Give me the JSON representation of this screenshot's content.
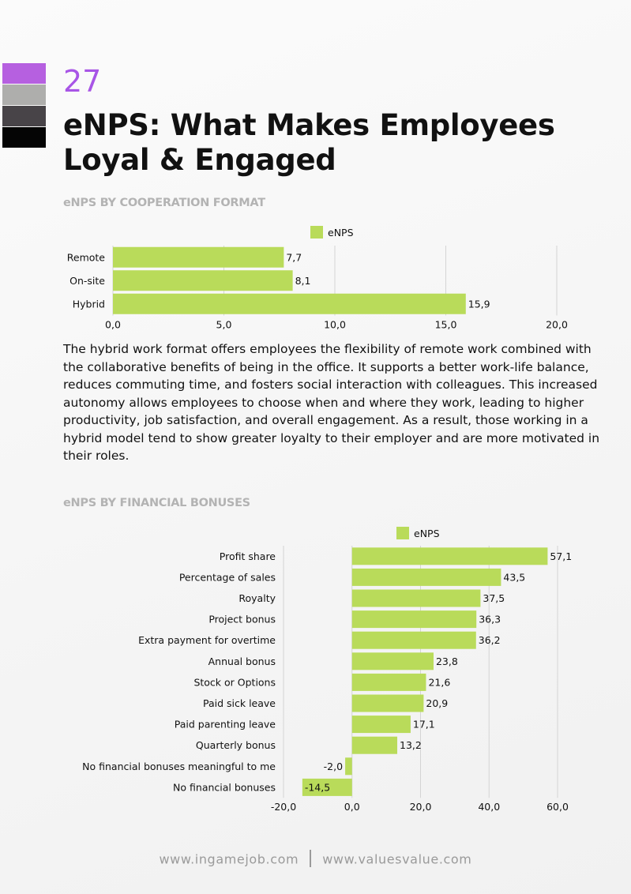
{
  "colors": {
    "accent": "#a855e6",
    "bar": "#b9db5a",
    "swatches": [
      "#b660e0",
      "#aeaeac",
      "#484448",
      "#050505"
    ]
  },
  "page": {
    "number": "27",
    "title": "eNPS: What Makes Employees Loyal & Engaged"
  },
  "sections": {
    "cooperation": {
      "title": "eNPS BY COOPERATION FORMAT"
    },
    "bonuses": {
      "title": "eNPS BY FINANCIAL BONUSES"
    }
  },
  "body_text": "The hybrid work format offers employees the flexibility of remote work combined with the collaborative benefits of being in the office. It supports a better work-life balance, reduces commuting time, and fosters social interaction with colleagues. This increased autonomy allows employees to choose when and where they work, leading to higher productivity, job satisfaction, and overall engagement. As a result, those working in a hybrid model tend to show greater loyalty to their employer and are more motivated in their roles.",
  "footer": {
    "left": "www.ingamejob.com",
    "right": "www.valuesvalue.com"
  },
  "chart_data": [
    {
      "type": "bar",
      "orientation": "horizontal",
      "legend": "eNPS",
      "legend_position": "top-center",
      "categories": [
        "Remote",
        "On-site",
        "Hybrid"
      ],
      "values": [
        7.7,
        8.1,
        15.9
      ],
      "data_labels": [
        "7,7",
        "8,1",
        "15,9"
      ],
      "xlim": [
        0,
        20
      ],
      "ticks": [
        0,
        5,
        10,
        15,
        20
      ],
      "tick_labels": [
        "0,0",
        "5,0",
        "10,0",
        "15,0",
        "20,0"
      ],
      "grid": true
    },
    {
      "type": "bar",
      "orientation": "horizontal",
      "legend": "eNPS",
      "legend_position": "top-center",
      "categories": [
        "Profit share",
        "Percentage of sales",
        "Royalty",
        "Project bonus",
        "Extra payment for overtime",
        "Annual bonus",
        "Stock or Options",
        "Paid sick leave",
        "Paid parenting leave",
        "Quarterly bonus",
        "No financial bonuses meaningful to me",
        "No financial bonuses"
      ],
      "values": [
        57.1,
        43.5,
        37.5,
        36.3,
        36.2,
        23.8,
        21.6,
        20.9,
        17.1,
        13.2,
        -2.0,
        -14.5
      ],
      "data_labels": [
        "57,1",
        "43,5",
        "37,5",
        "36,3",
        "36,2",
        "23,8",
        "21,6",
        "20,9",
        "17,1",
        "13,2",
        "-2,0",
        "-14,5"
      ],
      "xlim": [
        -20,
        60
      ],
      "ticks": [
        -20,
        0,
        20,
        40,
        60
      ],
      "tick_labels": [
        "-20,0",
        "0,0",
        "20,0",
        "40,0",
        "60,0"
      ],
      "grid": true
    }
  ]
}
